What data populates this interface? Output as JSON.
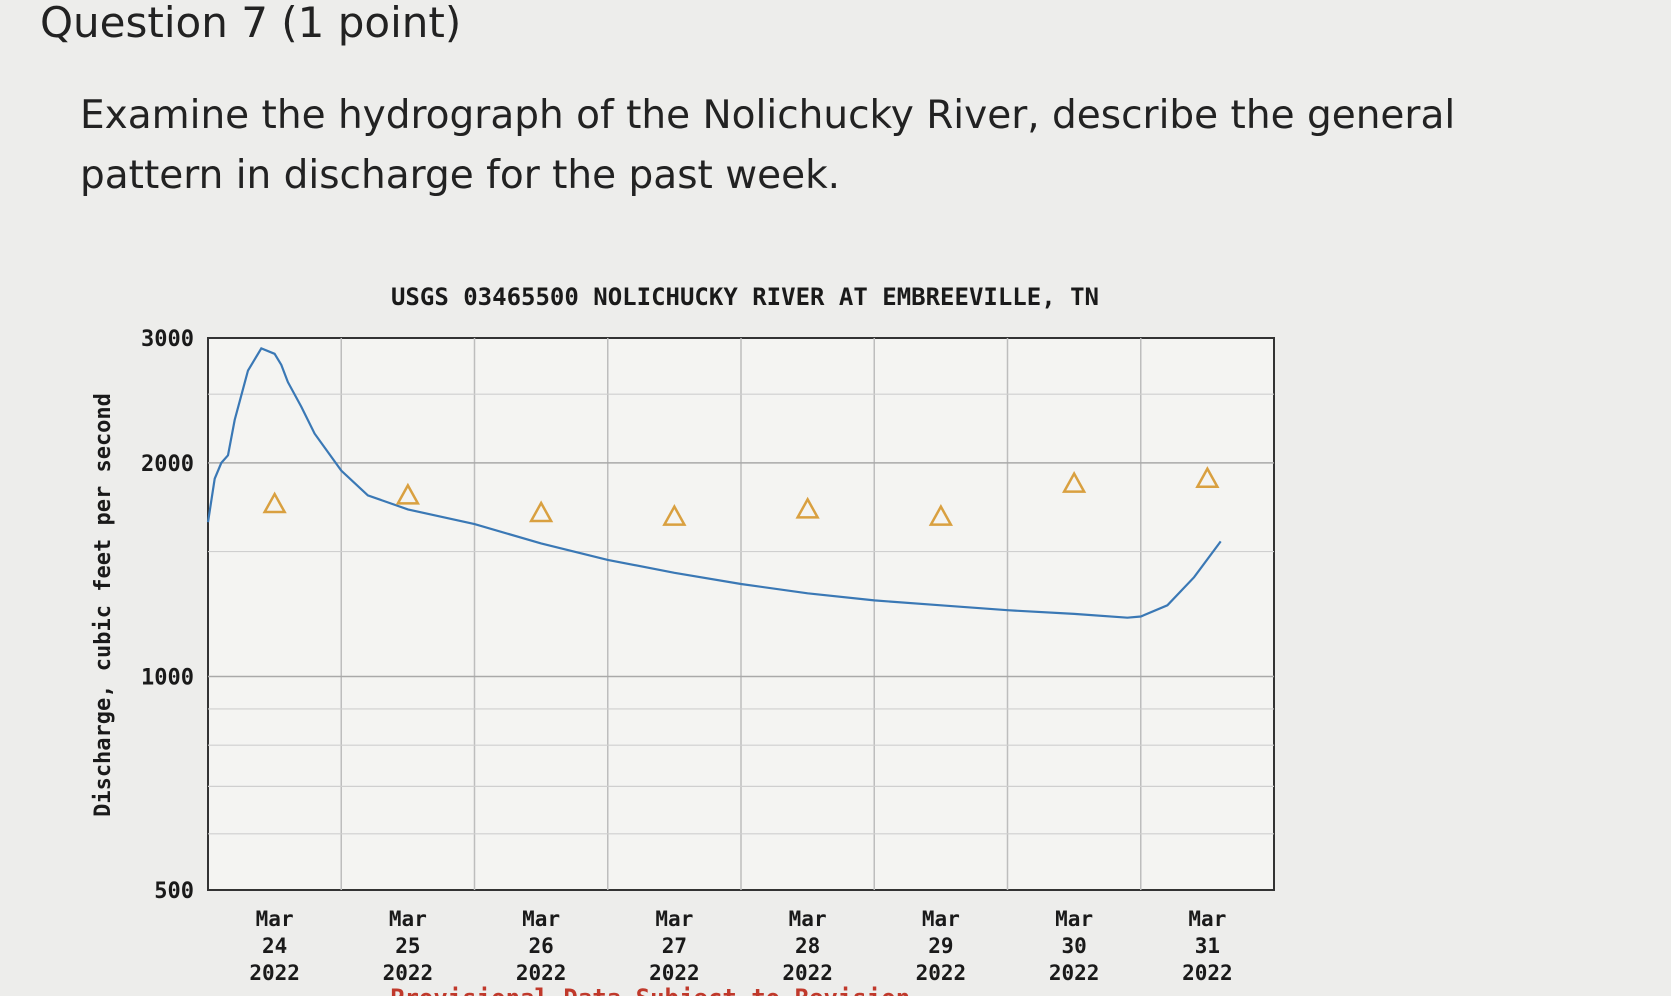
{
  "question": {
    "title": "Question 7",
    "points": "(1 point)",
    "text": "Examine the hydrograph of the Nolichucky River, describe the general pattern in discharge for the past week."
  },
  "chart_data": {
    "type": "line",
    "title": "USGS 03465500 NOLICHUCKY RIVER AT EMBREEVILLE, TN",
    "ylabel": "Discharge, cubic feet per second",
    "yscale": "log",
    "ylim": [
      500,
      3000
    ],
    "yticks": [
      "3000",
      "2000",
      "1000",
      "500"
    ],
    "ytick_values": [
      3000,
      2000,
      1000,
      500
    ],
    "xlim": [
      0,
      8
    ],
    "x_tick_labels": [
      {
        "month": "Mar",
        "day": "24",
        "year": "2022"
      },
      {
        "month": "Mar",
        "day": "25",
        "year": "2022"
      },
      {
        "month": "Mar",
        "day": "26",
        "year": "2022"
      },
      {
        "month": "Mar",
        "day": "27",
        "year": "2022"
      },
      {
        "month": "Mar",
        "day": "28",
        "year": "2022"
      },
      {
        "month": "Mar",
        "day": "29",
        "year": "2022"
      },
      {
        "month": "Mar",
        "day": "30",
        "year": "2022"
      },
      {
        "month": "Mar",
        "day": "31",
        "year": "2022"
      }
    ],
    "grid": true,
    "series": [
      {
        "color": "#3a78b5",
        "x": [
          0,
          0.05,
          0.1,
          0.15,
          0.2,
          0.3,
          0.4,
          0.5,
          0.55,
          0.6,
          0.7,
          0.8,
          1.0,
          1.2,
          1.5,
          2.0,
          2.5,
          3.0,
          3.5,
          4.0,
          4.5,
          5.0,
          5.5,
          6.0,
          6.5,
          6.9,
          7.0,
          7.2,
          7.4,
          7.6
        ],
        "y": [
          1650,
          1900,
          2000,
          2050,
          2300,
          2700,
          2900,
          2850,
          2750,
          2600,
          2400,
          2200,
          1950,
          1800,
          1720,
          1640,
          1540,
          1460,
          1400,
          1350,
          1310,
          1280,
          1260,
          1240,
          1225,
          1210,
          1215,
          1260,
          1380,
          1550
        ]
      }
    ],
    "markers": {
      "symbol": "triangle",
      "color": "#d9a040",
      "x": [
        0.5,
        1.5,
        2.5,
        3.5,
        4.5,
        5.5,
        6.5,
        7.5
      ],
      "y": [
        1750,
        1800,
        1700,
        1680,
        1720,
        1680,
        1870,
        1900
      ]
    },
    "footer_note": "Provisional Data Subject to Revision"
  }
}
